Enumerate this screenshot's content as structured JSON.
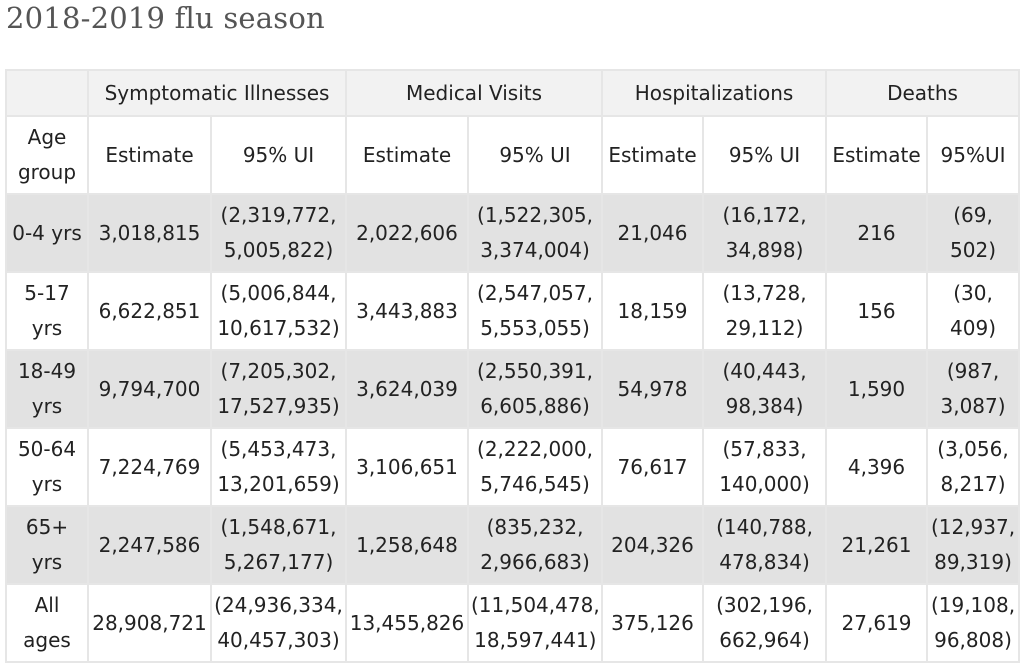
{
  "title": "2018-2019 flu season",
  "table": {
    "groups": [
      "Symptomatic Illnesses",
      "Medical Visits",
      "Hospitalizations",
      "Deaths"
    ],
    "age_header": [
      "Age",
      "group"
    ],
    "subheaders": [
      "Estimate",
      "95% UI",
      "Estimate",
      "95% UI",
      "Estimate",
      "95% UI",
      "Estimate",
      "95%UI"
    ],
    "rows": [
      {
        "age": [
          "0-4 yrs"
        ],
        "cells": [
          [
            "3,018,815"
          ],
          [
            "(2,319,772,",
            "5,005,822)"
          ],
          [
            "2,022,606"
          ],
          [
            "(1,522,305,",
            "3,374,004)"
          ],
          [
            "21,046"
          ],
          [
            "(16,172,",
            "34,898)"
          ],
          [
            "216"
          ],
          [
            "(69,",
            "502)"
          ]
        ]
      },
      {
        "age": [
          "5-17",
          "yrs"
        ],
        "cells": [
          [
            "6,622,851"
          ],
          [
            "(5,006,844,",
            "10,617,532)"
          ],
          [
            "3,443,883"
          ],
          [
            "(2,547,057,",
            "5,553,055)"
          ],
          [
            "18,159"
          ],
          [
            "(13,728,",
            "29,112)"
          ],
          [
            "156"
          ],
          [
            "(30,",
            "409)"
          ]
        ]
      },
      {
        "age": [
          "18-49",
          "yrs"
        ],
        "cells": [
          [
            "9,794,700"
          ],
          [
            "(7,205,302,",
            "17,527,935)"
          ],
          [
            "3,624,039"
          ],
          [
            "(2,550,391,",
            "6,605,886)"
          ],
          [
            "54,978"
          ],
          [
            "(40,443,",
            "98,384)"
          ],
          [
            "1,590"
          ],
          [
            "(987,",
            "3,087)"
          ]
        ]
      },
      {
        "age": [
          "50-64",
          "yrs"
        ],
        "cells": [
          [
            "7,224,769"
          ],
          [
            "(5,453,473,",
            "13,201,659)"
          ],
          [
            "3,106,651"
          ],
          [
            "(2,222,000,",
            "5,746,545)"
          ],
          [
            "76,617"
          ],
          [
            "(57,833,",
            "140,000)"
          ],
          [
            "4,396"
          ],
          [
            "(3,056,",
            "8,217)"
          ]
        ]
      },
      {
        "age": [
          "65+",
          "yrs"
        ],
        "cells": [
          [
            "2,247,586"
          ],
          [
            "(1,548,671,",
            "5,267,177)"
          ],
          [
            "1,258,648"
          ],
          [
            "(835,232,",
            "2,966,683)"
          ],
          [
            "204,326"
          ],
          [
            "(140,788,",
            "478,834)"
          ],
          [
            "21,261"
          ],
          [
            "(12,937,",
            "89,319)"
          ]
        ]
      },
      {
        "age": [
          "All",
          "ages"
        ],
        "cells": [
          [
            "28,908,721"
          ],
          [
            "(24,936,334,",
            "40,457,303)"
          ],
          [
            "13,455,826"
          ],
          [
            "(11,504,478,",
            "18,597,441)"
          ],
          [
            "375,126"
          ],
          [
            "(302,196,",
            "662,964)"
          ],
          [
            "27,619"
          ],
          [
            "(19,108,",
            "96,808)"
          ]
        ]
      }
    ]
  }
}
